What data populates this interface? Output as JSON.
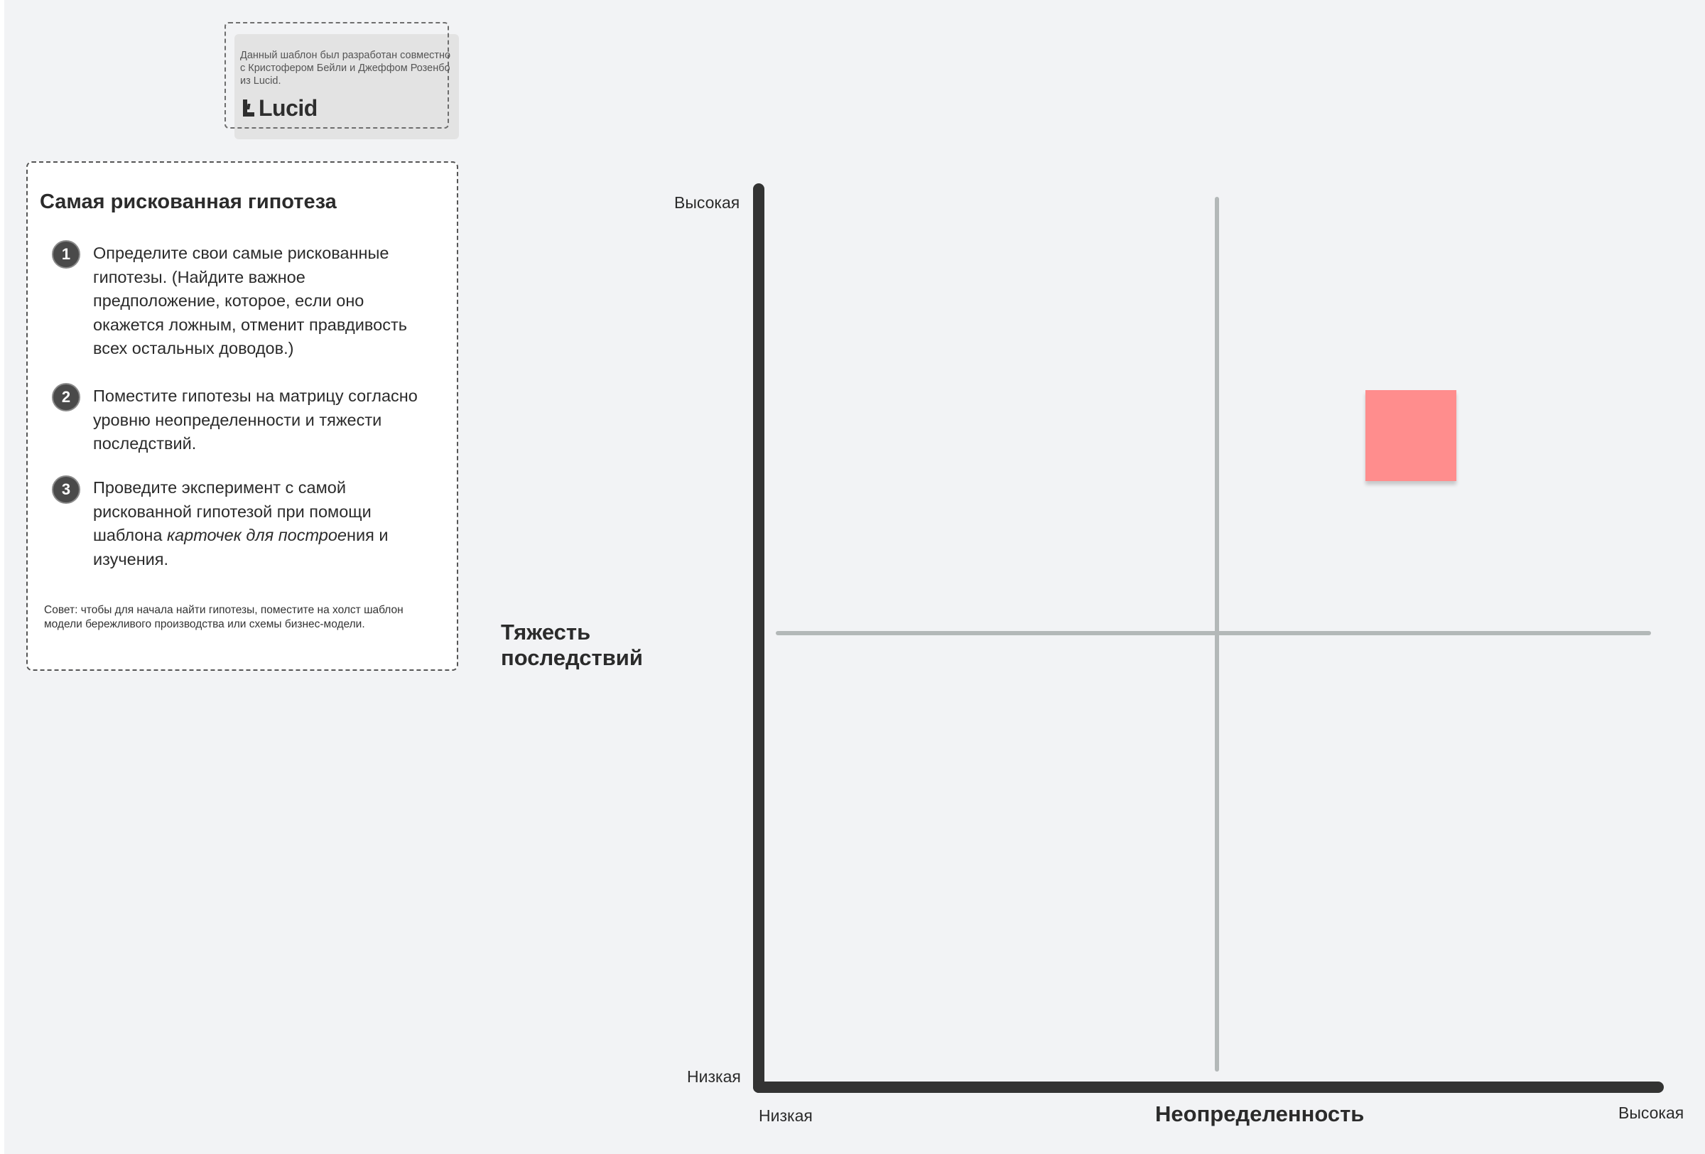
{
  "credit": {
    "text": "Данный шаблон был разработан совместно с Кристофером Бейли и Джеффом Розенбо из Lucid.",
    "logo_text": "Lucid"
  },
  "instructions": {
    "title": "Самая рискованная гипотеза",
    "steps": [
      {
        "number": "1",
        "text": "Определите свои самые рискованные гипотезы. (Найдите важное предположение, которое, если оно окажется ложным, отменит правдивость всех остальных доводов.)"
      },
      {
        "number": "2",
        "text": "Поместите гипотезы на матрицу согласно уровню неопределенности и тяжести последствий."
      },
      {
        "number": "3",
        "text_before": "Проведите эксперимент с самой рискованной гипотезой при помощи шаблона ",
        "text_italic": "карточек для построе",
        "text_after": "ния и изучения."
      }
    ],
    "tip": "Совет: чтобы для начала найти гипотезы, поместите на холст шаблон модели бережливого производства или схемы бизнес-модели."
  },
  "matrix": {
    "y_axis_title": "Тяжесть последствий",
    "x_axis_title": "Неопределенность",
    "y_high_label": "Высокая",
    "y_low_label": "Низкая",
    "x_low_label": "Низкая",
    "x_high_label": "Высокая",
    "sticky_color": "#ff8d8d"
  }
}
